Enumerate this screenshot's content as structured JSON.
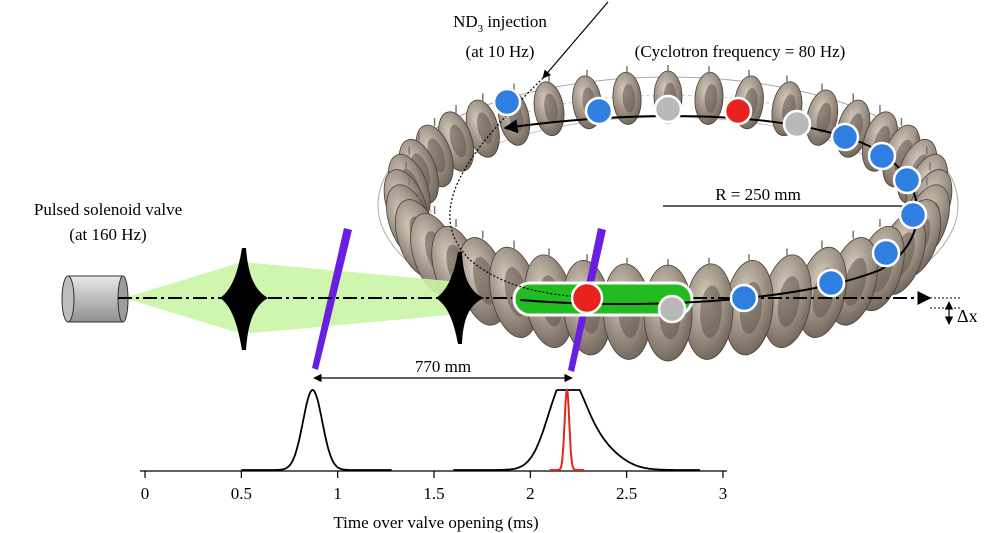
{
  "labels": {
    "injection": {
      "species": "ND",
      "subscript": "3",
      "rest": " injection",
      "rate": "(at 10 Hz)"
    },
    "cyclotron": "(Cyclotron frequency = 80 Hz)",
    "radius": "R = 250 mm",
    "valve_title": "Pulsed solenoid valve",
    "valve_rate": "(at 160 Hz)",
    "distance": "770 mm",
    "delta_x": "Δx"
  },
  "axis": {
    "title": "Time over valve opening (ms)",
    "ticks": [
      "0",
      "0.5",
      "1",
      "1.5",
      "2",
      "2.5",
      "3"
    ],
    "range": [
      0,
      3
    ]
  },
  "colors": {
    "beam": "#c9f5a6",
    "packet": "#22bb22",
    "laser": "#6a1fe0",
    "trapped_red": "#e8231f",
    "trapped_blue": "#2f7fe0",
    "empty_gray": "#b9b9b9",
    "electrode": "#8c8074",
    "profile_red": "#e8231f"
  },
  "profiles": [
    {
      "name": "first-detection-profile",
      "center_ms": 0.87,
      "width_ms": 0.05,
      "range_ms": [
        0.5,
        1.28
      ]
    },
    {
      "name": "second-detection-profile",
      "center_ms": 2.18,
      "width_ms": 0.09,
      "range_ms": [
        1.6,
        2.88
      ]
    },
    {
      "name": "trapped-packet-profile",
      "center_ms": 2.19,
      "width_ms": 0.012,
      "range_ms": [
        2.1,
        2.28
      ]
    }
  ]
}
